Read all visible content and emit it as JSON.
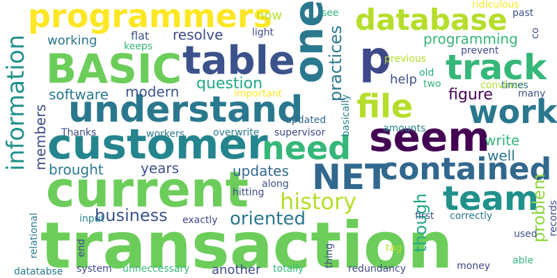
{
  "words": [
    {
      "text": "transaction",
      "color": "#6ccd5a",
      "vertical": false
    },
    {
      "text": "current",
      "color": "#6ccd5a",
      "vertical": false
    },
    {
      "text": "customer",
      "color": "#25858e",
      "vertical": false
    },
    {
      "text": "understand",
      "color": "#2a788e",
      "vertical": false
    },
    {
      "text": "BASIC",
      "color": "#6ccd5a",
      "vertical": false
    },
    {
      "text": "table",
      "color": "#3b528b",
      "vertical": false
    },
    {
      "text": "programmers",
      "color": "#fde725",
      "vertical": false
    },
    {
      "text": "database",
      "color": "#b5de2b",
      "vertical": false
    },
    {
      "text": "one",
      "color": "#2a788e",
      "vertical": true
    },
    {
      "text": "p",
      "color": "#3e4989",
      "vertical": false
    },
    {
      "text": "seem",
      "color": "#440154",
      "vertical": false
    },
    {
      "text": "track",
      "color": "#35b779",
      "vertical": false
    },
    {
      "text": "work",
      "color": "#2a788e",
      "vertical": false
    },
    {
      "text": "file",
      "color": "#b5de2b",
      "vertical": false
    },
    {
      "text": "need",
      "color": "#35b779",
      "vertical": false
    },
    {
      "text": "NET",
      "color": "#31688e",
      "vertical": false
    },
    {
      "text": "contained",
      "color": "#31688e",
      "vertical": false
    },
    {
      "text": "team",
      "color": "#21918c",
      "vertical": false
    },
    {
      "text": "information",
      "color": "#21918c",
      "vertical": true
    },
    {
      "text": "history",
      "color": "#b5de2b",
      "vertical": false
    },
    {
      "text": "oriented",
      "color": "#2a788e",
      "vertical": false
    },
    {
      "text": "business",
      "color": "#3b528b",
      "vertical": false
    },
    {
      "text": "problem",
      "color": "#90d743",
      "vertical": true
    },
    {
      "text": "though",
      "color": "#22a884",
      "vertical": true
    },
    {
      "text": "practices",
      "color": "#2a788e",
      "vertical": true
    },
    {
      "text": "members",
      "color": "#3e4989",
      "vertical": true
    },
    {
      "text": "software",
      "color": "#2a788e",
      "vertical": false
    },
    {
      "text": "modern",
      "color": "#3b528b",
      "vertical": false
    },
    {
      "text": "question",
      "color": "#22a884",
      "vertical": false
    },
    {
      "text": "resolve",
      "color": "#3e4989",
      "vertical": false
    },
    {
      "text": "working",
      "color": "#2a788e",
      "vertical": false
    },
    {
      "text": "programming",
      "color": "#35b779",
      "vertical": false
    },
    {
      "text": "brought",
      "color": "#2a788e",
      "vertical": false
    },
    {
      "text": "years",
      "color": "#3b528b",
      "vertical": false
    },
    {
      "text": "updates",
      "color": "#31688e",
      "vertical": false
    },
    {
      "text": "write",
      "color": "#35b779",
      "vertical": false
    },
    {
      "text": "well",
      "color": "#2a788e",
      "vertical": false
    },
    {
      "text": "figure",
      "color": "#440154",
      "vertical": false
    },
    {
      "text": "help",
      "color": "#3b528b",
      "vertical": false
    },
    {
      "text": "now",
      "color": "#b5de2b",
      "vertical": false
    },
    {
      "text": "flat",
      "color": "#3b528b",
      "vertical": false
    },
    {
      "text": "light",
      "color": "#3e4989",
      "vertical": false
    },
    {
      "text": "keeps",
      "color": "#35b779",
      "vertical": false
    },
    {
      "text": "important",
      "color": "#fde725",
      "vertical": false
    },
    {
      "text": "basically",
      "color": "#25858e",
      "vertical": true
    },
    {
      "text": "updated",
      "color": "#31688e",
      "vertical": false
    },
    {
      "text": "previous",
      "color": "#b5de2b",
      "vertical": false
    },
    {
      "text": "old",
      "color": "#22a884",
      "vertical": false
    },
    {
      "text": "two",
      "color": "#35b779",
      "vertical": false
    },
    {
      "text": "convince",
      "color": "#b5de2b",
      "vertical": false
    },
    {
      "text": "times",
      "color": "#2a788e",
      "vertical": false
    },
    {
      "text": "many",
      "color": "#3b528b",
      "vertical": false
    },
    {
      "text": "prevent",
      "color": "#3e4989",
      "vertical": false
    },
    {
      "text": "ridiculous",
      "color": "#fde725",
      "vertical": false
    },
    {
      "text": "past",
      "color": "#3b528b",
      "vertical": false
    },
    {
      "text": "co",
      "color": "#3e4989",
      "vertical": true
    },
    {
      "text": "see",
      "color": "#35b779",
      "vertical": false
    },
    {
      "text": "Thanks",
      "color": "#3e4989",
      "vertical": false
    },
    {
      "text": "workers",
      "color": "#2a788e",
      "vertical": false
    },
    {
      "text": "overwrite",
      "color": "#2a788e",
      "vertical": false
    },
    {
      "text": "supervisor",
      "color": "#3e4989",
      "vertical": false
    },
    {
      "text": "amounts",
      "color": "#25858e",
      "vertical": false
    },
    {
      "text": "hitting",
      "color": "#3e4989",
      "vertical": false
    },
    {
      "text": "along",
      "color": "#3b528b",
      "vertical": false
    },
    {
      "text": "exactly",
      "color": "#3e4989",
      "vertical": false
    },
    {
      "text": "input",
      "color": "#25858e",
      "vertical": false
    },
    {
      "text": "first",
      "color": "#3b528b",
      "vertical": false
    },
    {
      "text": "correctly",
      "color": "#2a788e",
      "vertical": false
    },
    {
      "text": "relational",
      "color": "#2a788e",
      "vertical": true
    },
    {
      "text": "end",
      "color": "#3e4989",
      "vertical": true
    },
    {
      "text": "tag",
      "color": "#b5de2b",
      "vertical": false
    },
    {
      "text": "thing",
      "color": "#3e4989",
      "vertical": true
    },
    {
      "text": "used",
      "color": "#3b528b",
      "vertical": false
    },
    {
      "text": "records",
      "color": "#3e4989",
      "vertical": true
    },
    {
      "text": "able",
      "color": "#35b779",
      "vertical": false
    },
    {
      "text": "money",
      "color": "#3e4989",
      "vertical": false
    },
    {
      "text": "system",
      "color": "#3e4989",
      "vertical": false
    },
    {
      "text": "unneccessary",
      "color": "#35b779",
      "vertical": false
    },
    {
      "text": "another",
      "color": "#3e4989",
      "vertical": false
    },
    {
      "text": "totally",
      "color": "#35b779",
      "vertical": false
    },
    {
      "text": "redundancy",
      "color": "#3e4989",
      "vertical": false
    },
    {
      "text": "datatabse",
      "color": "#2a788e",
      "vertical": false
    }
  ]
}
